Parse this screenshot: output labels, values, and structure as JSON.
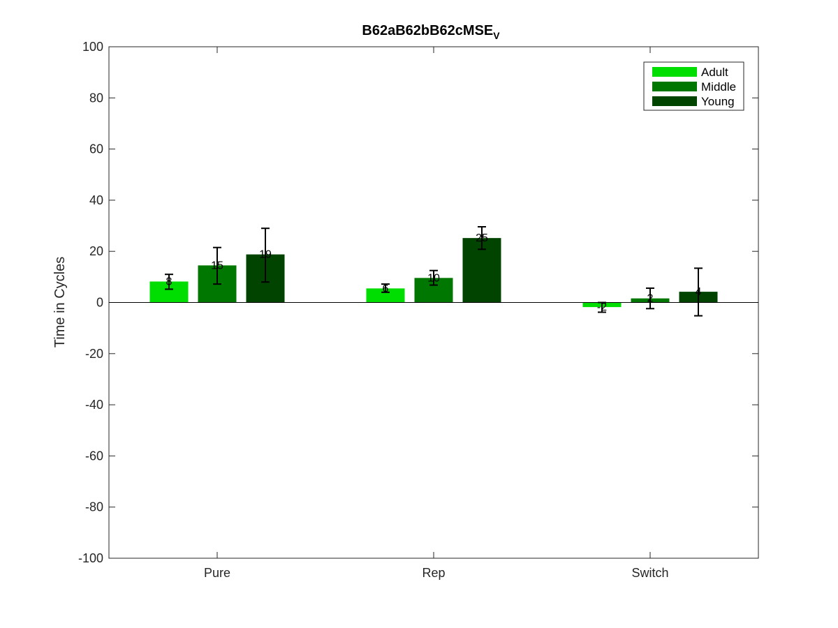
{
  "chart_data": {
    "type": "bar",
    "title": "B62aB62bB62cMSE",
    "title_subscript": "V",
    "xlabel": "",
    "ylabel": "Time in Cycles",
    "ylim": [
      -100,
      100
    ],
    "yticks": [
      -100,
      -80,
      -60,
      -40,
      -20,
      0,
      20,
      40,
      60,
      80,
      100
    ],
    "categories": [
      "Pure",
      "Rep",
      "Switch"
    ],
    "legend_position": "top-right",
    "grid": false,
    "series": [
      {
        "name": "Adult",
        "color": "#00dd00",
        "values": [
          8.2,
          5.5,
          -1.8
        ],
        "labels": [
          "8",
          "6",
          "-2"
        ],
        "err_low": [
          5.2,
          4.0,
          -3.8
        ],
        "err_high": [
          11.0,
          7.2,
          0.0
        ]
      },
      {
        "name": "Middle",
        "color": "#007700",
        "values": [
          14.5,
          9.6,
          1.6
        ],
        "labels": [
          "15",
          "10",
          "2"
        ],
        "err_low": [
          7.2,
          6.8,
          -2.4
        ],
        "err_high": [
          21.5,
          12.5,
          5.6
        ]
      },
      {
        "name": "Young",
        "color": "#004400",
        "values": [
          18.8,
          25.2,
          4.2
        ],
        "labels": [
          "19",
          "25",
          "4"
        ],
        "err_low": [
          8.0,
          20.8,
          -5.2
        ],
        "err_high": [
          29.0,
          29.6,
          13.4
        ]
      }
    ]
  }
}
